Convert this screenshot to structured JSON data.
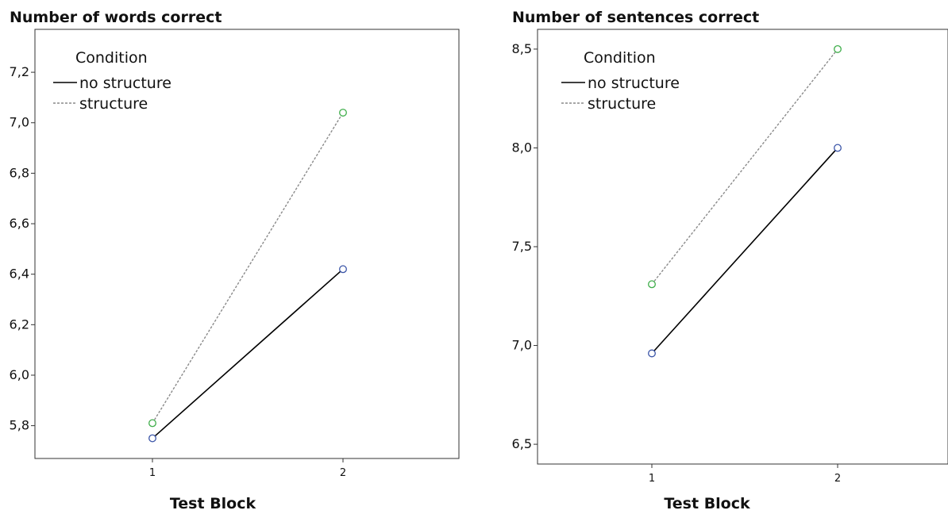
{
  "chart_data": [
    {
      "type": "line",
      "title": "Number of words correct",
      "xlabel": "Test Block",
      "ylabel": "",
      "categories": [
        "1",
        "2"
      ],
      "ylim": [
        5.67,
        7.37
      ],
      "yticks": [
        5.8,
        6.0,
        6.2,
        6.4,
        6.6,
        6.8,
        7.0,
        7.2
      ],
      "ytick_labels": [
        "5,8",
        "6,0",
        "6,2",
        "6,4",
        "6,6",
        "6,8",
        "7,0",
        "7,2"
      ],
      "legend": {
        "title": "Condition",
        "placement": "top-left"
      },
      "series": [
        {
          "name": "no structure",
          "values": [
            5.75,
            6.42
          ],
          "line_color": "#000000",
          "marker_color": "#3b55a8",
          "dashed": false
        },
        {
          "name": "structure",
          "values": [
            5.81,
            7.04
          ],
          "line_color": "#8a8a8a",
          "marker_color": "#3fae4a",
          "dashed": true
        }
      ],
      "grid": false
    },
    {
      "type": "line",
      "title": "Number of sentences correct",
      "xlabel": "Test Block",
      "ylabel": "",
      "categories": [
        "1",
        "2"
      ],
      "ylim": [
        6.4,
        8.6
      ],
      "yticks": [
        6.5,
        7.0,
        7.5,
        8.0,
        8.5
      ],
      "ytick_labels": [
        "6,5",
        "7,0",
        "7,5",
        "8,0",
        "8,5"
      ],
      "legend": {
        "title": "Condition",
        "placement": "top-left"
      },
      "series": [
        {
          "name": "no structure",
          "values": [
            6.96,
            8.0
          ],
          "line_color": "#000000",
          "marker_color": "#3b55a8",
          "dashed": false
        },
        {
          "name": "structure",
          "values": [
            7.31,
            8.5
          ],
          "line_color": "#8a8a8a",
          "marker_color": "#3fae4a",
          "dashed": true
        }
      ],
      "grid": false
    }
  ]
}
